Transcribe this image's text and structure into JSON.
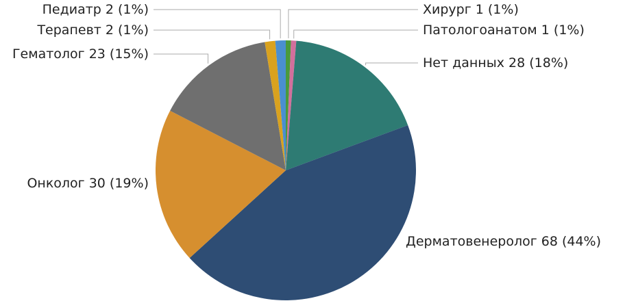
{
  "chart_data": {
    "type": "pie",
    "categories": [
      "Хирург",
      "Патологоанатом",
      "Нет данных",
      "Дерматовенеролог",
      "Онколог",
      "Гематолог",
      "Терапевт",
      "Педиатр"
    ],
    "values": [
      1,
      1,
      28,
      68,
      30,
      23,
      2,
      2
    ],
    "value_labels": [
      "1 (1%)",
      "1 (1%)",
      "28 (18%)",
      "68 (44%)",
      "30 (19%)",
      "23 (15%)",
      "2 (1%)",
      "2 (1%)"
    ],
    "colors": [
      "#4a9a3c",
      "#d36f9c",
      "#2e7b73",
      "#2e4d74",
      "#d68f2f",
      "#6f6f6f",
      "#d9a21f",
      "#4a8fd0"
    ]
  }
}
